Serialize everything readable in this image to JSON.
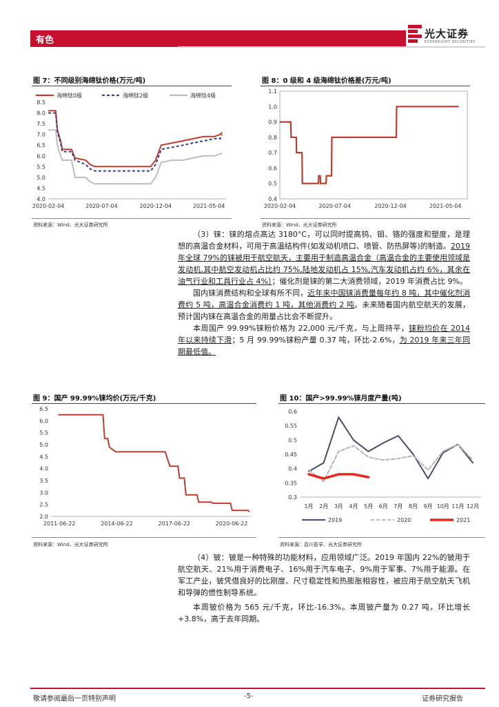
{
  "header": {
    "section": "有色",
    "logo_cn": "光大证券",
    "logo_en": "EVERBRIGHT SECURITIES"
  },
  "fig7": {
    "title": "图 7：不同级别海绵钛价格(万元/吨)",
    "source": "资料来源：Wind、光大证券研究所",
    "chart_data": {
      "type": "line",
      "x_ticks": [
        "2020-02-04",
        "2020-07-04",
        "2020-12-04",
        "2021-05-04"
      ],
      "y_ticks": [
        "4.0",
        "4.5",
        "5.0",
        "5.5",
        "6.0",
        "6.5",
        "7.0",
        "7.5",
        "8.0",
        "8.5"
      ],
      "ylim": [
        4.0,
        8.5
      ],
      "x": [
        "2020-02-04",
        "2020-02-25",
        "2020-03-01",
        "2020-03-10",
        "2020-03-15",
        "2020-04-10",
        "2020-04-20",
        "2020-05-20",
        "2020-06-01",
        "2020-06-15",
        "2020-07-04",
        "2020-08-15",
        "2020-09-15",
        "2020-10-15",
        "2020-11-20",
        "2020-12-04",
        "2020-12-20",
        "2021-01-20",
        "2021-02-20",
        "2021-03-20",
        "2021-04-20",
        "2021-05-20",
        "2021-06-05",
        "2021-06-10"
      ],
      "series": [
        {
          "name": "海绵钛0级",
          "color": "#c23b2a",
          "values": [
            8.1,
            8.1,
            7.2,
            6.7,
            6.3,
            6.3,
            5.9,
            5.8,
            5.6,
            5.5,
            5.5,
            5.5,
            5.5,
            5.5,
            5.5,
            5.8,
            6.5,
            6.6,
            6.7,
            6.8,
            6.9,
            6.9,
            7.0,
            7.1
          ]
        },
        {
          "name": "海绵钛2级",
          "color": "#3a3d8f",
          "values": [
            8.0,
            8.0,
            7.1,
            6.6,
            6.2,
            6.2,
            5.8,
            5.6,
            5.4,
            5.3,
            5.3,
            5.3,
            5.3,
            5.3,
            5.3,
            5.6,
            6.3,
            6.4,
            6.5,
            6.6,
            6.7,
            6.8,
            6.8,
            7.0
          ]
        },
        {
          "name": "海绵钛4级",
          "color": "#bdbdbd",
          "values": [
            7.2,
            7.2,
            6.5,
            6.0,
            5.8,
            5.8,
            5.0,
            5.0,
            4.8,
            4.7,
            4.7,
            4.7,
            4.7,
            4.7,
            4.7,
            5.0,
            5.7,
            5.8,
            5.8,
            5.9,
            6.0,
            6.0,
            6.1,
            6.1
          ]
        }
      ]
    }
  },
  "fig8": {
    "title": "图 8：0 级和 4 级海绵钛价格差(万元/吨)",
    "source": "资料来源：Wind、光大证券研究所",
    "chart_data": {
      "type": "line",
      "x_ticks": [
        "2020-02-04",
        "2020-07-04",
        "2020-12-04",
        "2021-05-04"
      ],
      "y_ticks": [
        "0.4",
        "0.5",
        "0.6",
        "0.7",
        "0.8",
        "0.9",
        "1.0",
        "1.1"
      ],
      "ylim": [
        0.4,
        1.1
      ],
      "x": [
        "2020-02-04",
        "2020-03-05",
        "2020-03-06",
        "2020-03-20",
        "2020-03-21",
        "2020-04-05",
        "2020-04-06",
        "2020-05-20",
        "2020-05-21",
        "2020-05-25",
        "2020-05-26",
        "2020-06-10",
        "2020-06-11",
        "2020-06-25",
        "2020-06-26",
        "2020-12-20",
        "2020-12-21",
        "2021-06-10"
      ],
      "series": [
        {
          "name": "价差",
          "color": "#c23b2a",
          "values": [
            0.9,
            0.9,
            0.8,
            0.8,
            0.7,
            0.7,
            0.5,
            0.5,
            0.55,
            0.55,
            0.5,
            0.5,
            0.55,
            0.55,
            0.8,
            0.8,
            1.0,
            1.0
          ]
        }
      ]
    }
  },
  "text1": {
    "p1_a": "（3）铼：铼的熔点高达 3180°C，可以同时提高钨、钼、铬的强度和塑度，是理想的高温合金材料，可用于高温结构件(如发动机喷口、喷管、防热屏等)的制造。",
    "p1_b": "2019 年全球 79%的铼被用于航空航天，主要用于制造高温合金（高温合金的主要使用领域是发动机,其中航空发动机占比约 75%,陆地发动机占 15%,汽车发动机占约 6%，其余在油气行业和工具行业占 4%）",
    "p1_c": "；催化剂是铼的第二大消费领域，2019 年消费占比 9%。",
    "p2_a": "国内铼消费结构和全球有所不同，",
    "p2_b": "近年来中国铼消费量每年约 8 吨，其中催化剂消费约 5 吨，高温合金消费约 1 吨，其他消费约 2 吨",
    "p2_c": "。未来随着国内航空航天的发展，预计国内铼在高温合金的用量占比会不断提升。",
    "p3_a": "本周国产 99.99%铼粉价格为 22,000 元/千克，与上周持平，",
    "p3_b": "铼粉均价在 2014 年以来持续下滑",
    "p3_c": "；5 月 99.99%铼粉产量 0.37 吨，环比-2.6%，",
    "p3_d": "为 2019 年来三年同期最低值。"
  },
  "fig9": {
    "title": "图 9：国产 99.99%铼均价(万元/千克)",
    "source": "资料来源：Wind、光大证券研究所",
    "chart_data": {
      "type": "line",
      "x_ticks": [
        "2011-06-22",
        "2014-06-22",
        "2017-06-22",
        "2020-06-22"
      ],
      "y_ticks": [
        "2.0",
        "2.5",
        "3.0",
        "3.5",
        "4.0",
        "4.5",
        "5.0",
        "5.5",
        "6.0",
        "6.5"
      ],
      "ylim": [
        2.0,
        6.5
      ],
      "x": [
        "2011-06",
        "2012-06",
        "2013-06",
        "2013-10",
        "2013-11",
        "2014-01",
        "2014-02",
        "2014-06",
        "2015-01",
        "2016-01",
        "2017-01",
        "2017-04",
        "2017-05",
        "2017-09",
        "2017-10",
        "2018-01",
        "2018-02",
        "2018-09",
        "2018-10",
        "2019-06",
        "2019-07",
        "2020-06",
        "2020-07",
        "2021-05",
        "2021-06"
      ],
      "series": [
        {
          "name": "铼均价",
          "color": "#c23b2a",
          "values": [
            6.25,
            6.25,
            6.25,
            6.25,
            5.25,
            5.25,
            4.9,
            4.7,
            4.7,
            4.7,
            4.7,
            4.1,
            4.1,
            4.1,
            3.6,
            3.6,
            2.9,
            2.9,
            2.6,
            2.6,
            2.55,
            2.55,
            2.25,
            2.25,
            2.2
          ]
        }
      ]
    }
  },
  "fig10": {
    "title": "图 10：国产>99.99%铼月度产量(吨)",
    "source": "资料来源：百川盈孚、光大证券研究所",
    "chart_data": {
      "type": "line",
      "categories": [
        "1月",
        "2月",
        "3月",
        "4月",
        "5月",
        "6月",
        "7月",
        "8月",
        "9月",
        "10月",
        "11月",
        "12月"
      ],
      "y_ticks": [
        "0.3",
        "0.35",
        "0.4",
        "0.45",
        "0.5",
        "0.55",
        "0.6"
      ],
      "ylim": [
        0.3,
        0.6
      ],
      "series": [
        {
          "name": "2019",
          "color": "#4a4a6a",
          "values": [
            0.39,
            0.42,
            0.58,
            0.5,
            0.46,
            0.49,
            0.515,
            0.45,
            0.365,
            0.455,
            0.485,
            0.42
          ]
        },
        {
          "name": "2020",
          "color": "#b5b5b5",
          "values": [
            0.395,
            0.355,
            0.46,
            0.48,
            0.44,
            0.43,
            0.435,
            0.445,
            0.395,
            0.46,
            0.485,
            0.43
          ]
        },
        {
          "name": "2021",
          "color": "#e8281e",
          "values": [
            0.38,
            0.365,
            0.38,
            0.38,
            0.37,
            null,
            null,
            null,
            null,
            null,
            null,
            null
          ]
        }
      ]
    }
  },
  "text2": {
    "p1": "（4）铍：铍是一种特殊的功能材料，应用领域广泛。2019 年国内 22%的铍用于航空航天、21%用于消费电子、16%用于汽车电子、9%用于军事、7%用于能源。在军工产业，铍凭借良好的比刚度、尺寸稳定性和热膨胀相容性，被应用于航空航天飞机和导弹的惯性制导系统。",
    "p2": "本周铍价格为 565 元/千克，环比-16.3%。本周铍产量为 0.27 吨，环比增长+3.8%，高于去年同期。"
  },
  "footer": {
    "left": "敬请参阅最后一页特别声明",
    "center": "-5-",
    "right": "证券研究报告"
  },
  "colors": {
    "brand": "#c8102e"
  }
}
